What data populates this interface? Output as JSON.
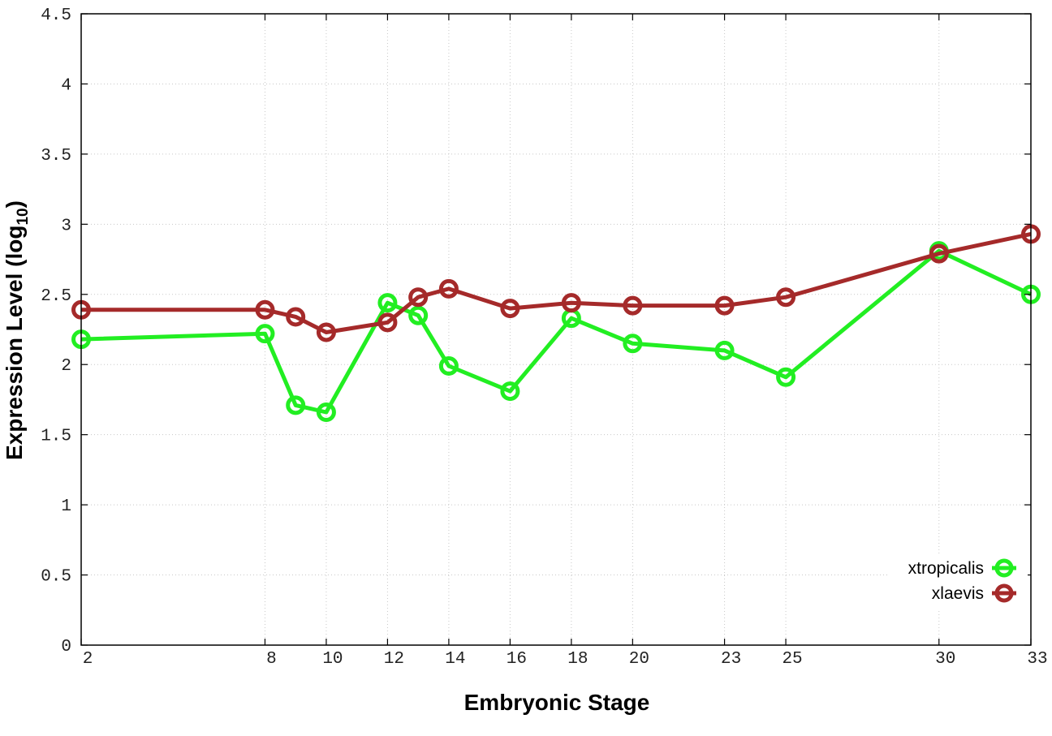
{
  "chart_data": {
    "type": "line",
    "xlabel": "Embryonic Stage",
    "ylabel": "Expression Level (log",
    "ylabel_sub": "10",
    "ylabel_close": ")",
    "xlim": [
      2,
      33
    ],
    "ylim": [
      0,
      4.5
    ],
    "x_ticks": [
      2,
      8,
      10,
      12,
      14,
      16,
      18,
      20,
      23,
      25,
      30,
      33
    ],
    "y_ticks": [
      0,
      0.5,
      1,
      1.5,
      2,
      2.5,
      3,
      3.5,
      4,
      4.5
    ],
    "y_tick_labels": [
      "0",
      "0.5",
      "1",
      "1.5",
      "2",
      "2.5",
      "3",
      "3.5",
      "4",
      "4.5"
    ],
    "grid": true,
    "legend_position": "bottom-right",
    "x": [
      2,
      8,
      9,
      10,
      12,
      13,
      14,
      16,
      18,
      20,
      23,
      25,
      30,
      33
    ],
    "series": [
      {
        "name": "xtropicalis",
        "color": "#22ee22",
        "values": [
          2.18,
          2.22,
          1.71,
          1.66,
          2.44,
          2.35,
          1.99,
          1.81,
          2.33,
          2.15,
          2.1,
          1.91,
          2.81,
          2.5
        ]
      },
      {
        "name": "xlaevis",
        "color": "#a52a2a",
        "values": [
          2.39,
          2.39,
          2.34,
          2.23,
          2.3,
          2.48,
          2.54,
          2.4,
          2.44,
          2.42,
          2.42,
          2.48,
          2.79,
          2.93
        ]
      }
    ]
  }
}
